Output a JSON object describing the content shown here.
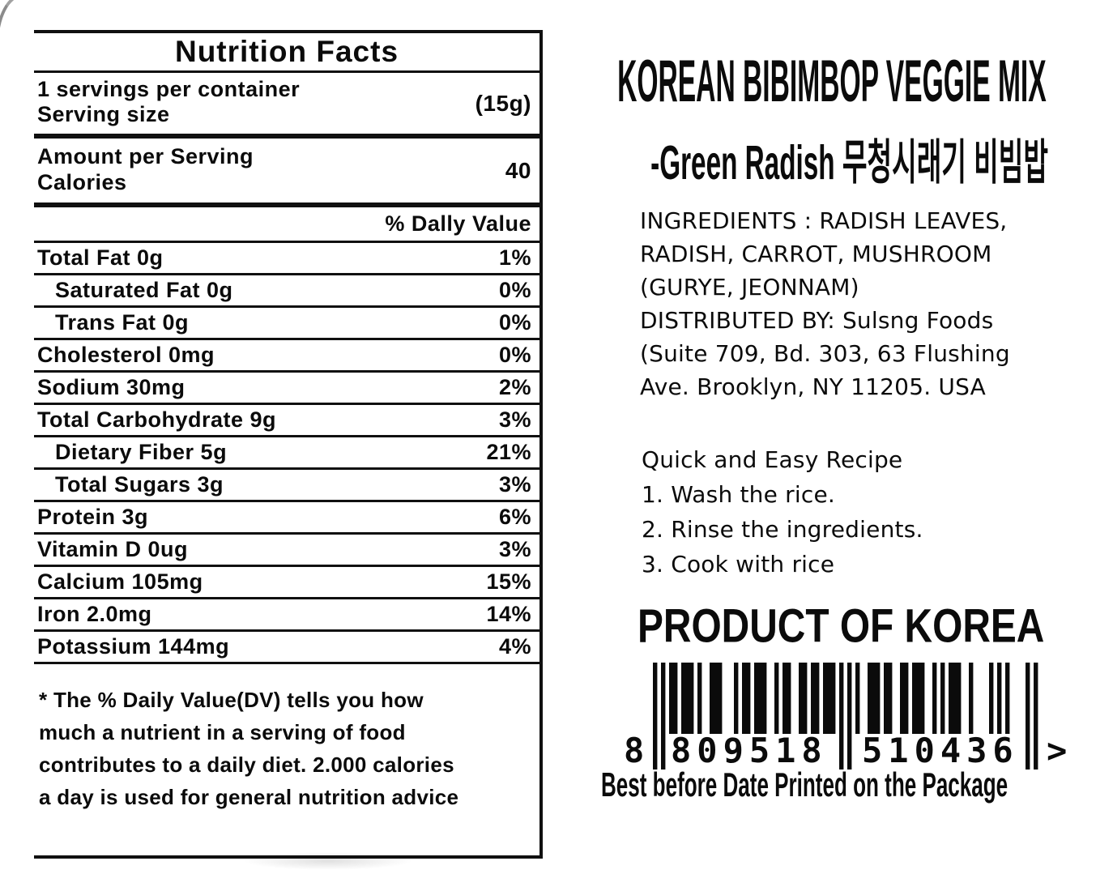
{
  "nutrition": {
    "title": "Nutrition Facts",
    "servings_per_container": "1 servings per container",
    "serving_size_label": "Serving size",
    "serving_size_value": "(15g)",
    "amount_per_serving_label": "Amount per Serving",
    "calories_label": "Calories",
    "calories_value": "40",
    "daily_value_header": "% Dally Value",
    "rows": [
      {
        "label": "Total Fat 0g",
        "value": "1%",
        "indent": false
      },
      {
        "label": "Saturated Fat 0g",
        "value": "0%",
        "indent": true
      },
      {
        "label": "Trans Fat 0g",
        "value": "0%",
        "indent": true
      },
      {
        "label": "Cholesterol 0mg",
        "value": "0%",
        "indent": false
      },
      {
        "label": "Sodium 30mg",
        "value": "2%",
        "indent": false
      },
      {
        "label": "Total Carbohydrate 9g",
        "value": "3%",
        "indent": false
      },
      {
        "label": "Dietary Fiber 5g",
        "value": "21%",
        "indent": true
      },
      {
        "label": "Total Sugars 3g",
        "value": "3%",
        "indent": true
      },
      {
        "label": "Protein 3g",
        "value": "6%",
        "indent": false
      },
      {
        "label": "Vitamin D 0ug",
        "value": "3%",
        "indent": false
      },
      {
        "label": "Calcium 105mg",
        "value": "15%",
        "indent": false
      },
      {
        "label": "Iron 2.0mg",
        "value": "14%",
        "indent": false
      },
      {
        "label": "Potassium 144mg",
        "value": "4%",
        "indent": false
      }
    ],
    "footnote_lines": [
      "* The % Daily Value(DV) tells you how",
      "much a nutrient in a serving of food",
      "contributes to a daily diet. 2.000 calories",
      "a day is used for general nutrition advice"
    ]
  },
  "product": {
    "title": "KOREAN BIBIMBOP VEGGIE MIX",
    "subtitle": "-Green Radish 무청시래기 비빔밥",
    "ingredients_lines": [
      "INGREDIENTS : RADISH LEAVES,",
      "RADISH, CARROT, MUSHROOM",
      "(GURYE, JEONNAM)",
      "DISTRIBUTED BY: Sulsng Foods",
      "(Suite 709, Bd. 303, 63 Flushing",
      "Ave. Brooklyn, NY 11205. USA"
    ],
    "recipe_lines": [
      "Quick and Easy Recipe",
      "1. Wash the rice.",
      "2. Rinse the ingredients.",
      "3. Cook with rice"
    ],
    "origin": "PRODUCT OF KOREA",
    "barcode": {
      "number": "8809518510436",
      "lead_digit": "8",
      "left_group": "809518",
      "right_group": "510436",
      "suffix": ">"
    },
    "best_before": "Best before Date Printed on the Package"
  },
  "colors": {
    "ink": "#0b0b0b",
    "paper": "#ffffff"
  }
}
